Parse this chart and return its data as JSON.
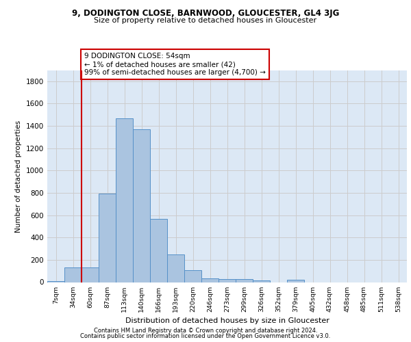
{
  "title1": "9, DODINGTON CLOSE, BARNWOOD, GLOUCESTER, GL4 3JG",
  "title2": "Size of property relative to detached houses in Gloucester",
  "xlabel": "Distribution of detached houses by size in Gloucester",
  "ylabel": "Number of detached properties",
  "categories": [
    "7sqm",
    "34sqm",
    "60sqm",
    "87sqm",
    "113sqm",
    "140sqm",
    "166sqm",
    "193sqm",
    "220sqm",
    "246sqm",
    "273sqm",
    "299sqm",
    "326sqm",
    "352sqm",
    "379sqm",
    "405sqm",
    "432sqm",
    "458sqm",
    "485sqm",
    "511sqm",
    "538sqm"
  ],
  "values": [
    10,
    130,
    130,
    795,
    1470,
    1370,
    565,
    250,
    110,
    35,
    30,
    30,
    18,
    0,
    20,
    0,
    0,
    0,
    0,
    0,
    0
  ],
  "bar_color": "#aac4e0",
  "bar_edgecolor": "#5590c8",
  "grid_color": "#cccccc",
  "bg_color": "#dce8f5",
  "vline_color": "#cc0000",
  "vline_x_index": 2,
  "annotation_line1": "9 DODINGTON CLOSE: 54sqm",
  "annotation_line2": "← 1% of detached houses are smaller (42)",
  "annotation_line3": "99% of semi-detached houses are larger (4,700) →",
  "annotation_box_color": "#ffffff",
  "annotation_box_edgecolor": "#cc0000",
  "footer1": "Contains HM Land Registry data © Crown copyright and database right 2024.",
  "footer2": "Contains public sector information licensed under the Open Government Licence v3.0.",
  "ylim": [
    0,
    1900
  ],
  "yticks": [
    0,
    200,
    400,
    600,
    800,
    1000,
    1200,
    1400,
    1600,
    1800
  ]
}
